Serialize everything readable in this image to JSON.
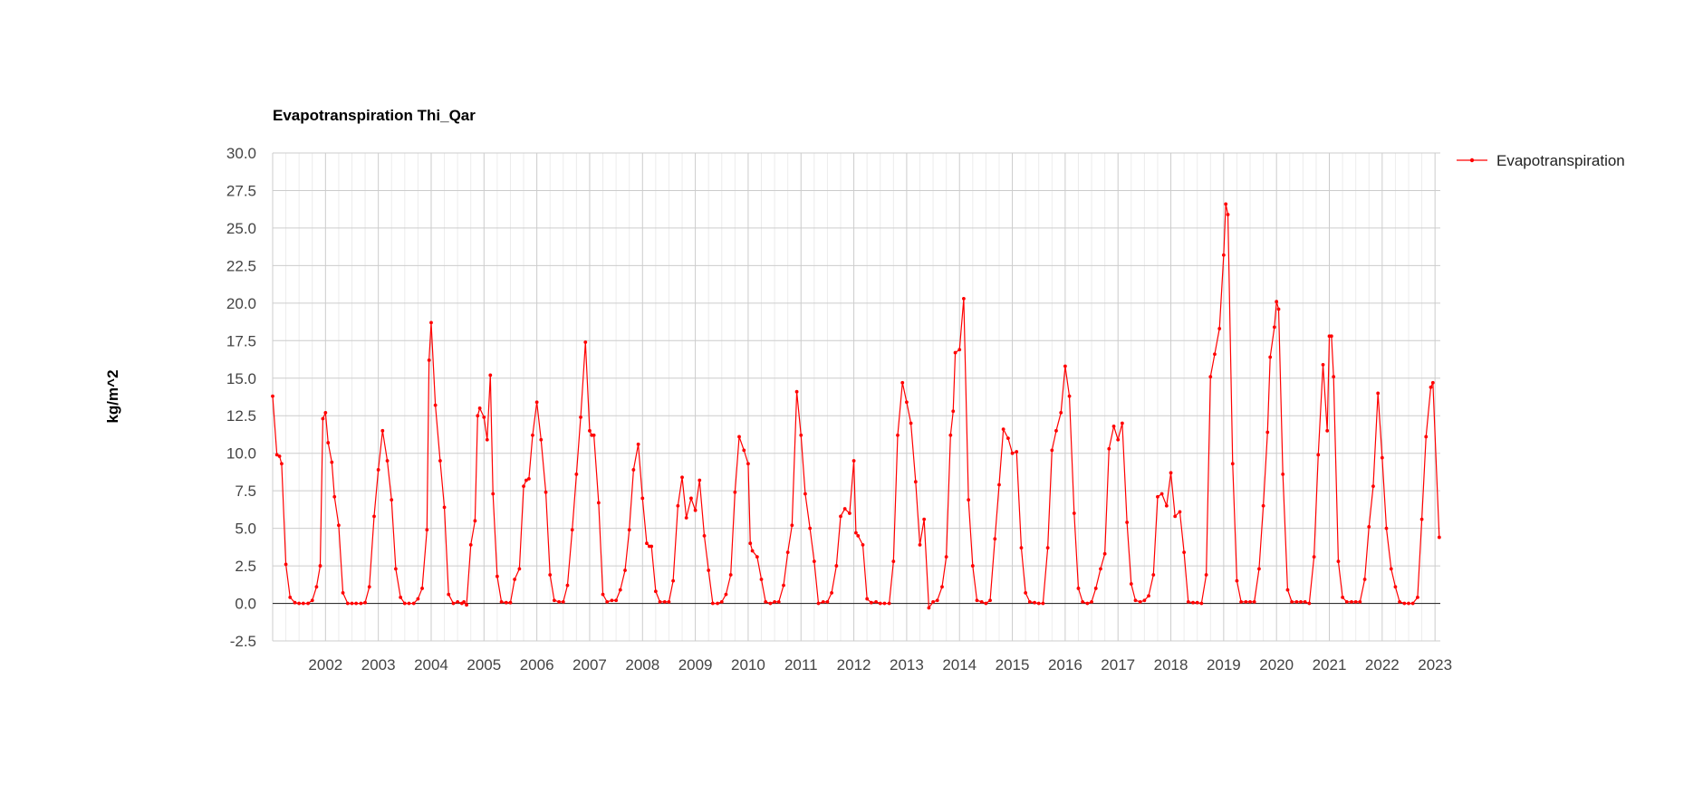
{
  "chart_data": {
    "type": "line",
    "title": "Evapotranspiration Thi_Qar",
    "ylabel": "kg/m^2",
    "xlabel": "",
    "ylim": [
      -2.5,
      30
    ],
    "yticks": [
      "30.0",
      "27.5",
      "25.0",
      "22.5",
      "20.0",
      "17.5",
      "15.0",
      "12.5",
      "10.0",
      "7.5",
      "5.0",
      "2.5",
      "0.0",
      "-2.5"
    ],
    "xticks": [
      "2002",
      "2003",
      "2004",
      "2005",
      "2006",
      "2007",
      "2008",
      "2009",
      "2010",
      "2011",
      "2012",
      "2013",
      "2014",
      "2015",
      "2016",
      "2017",
      "2018",
      "2019",
      "2020",
      "2021",
      "2022",
      "2023"
    ],
    "xlim": [
      2001.0,
      2023.1
    ],
    "grid": true,
    "legend_position": "right",
    "series": [
      {
        "name": "Evapotranspiration",
        "color": "#ff0000",
        "points": [
          [
            2001.0,
            13.8
          ],
          [
            2001.08,
            9.9
          ],
          [
            2001.13,
            9.8
          ],
          [
            2001.17,
            9.3
          ],
          [
            2001.25,
            2.6
          ],
          [
            2001.33,
            0.4
          ],
          [
            2001.42,
            0.05
          ],
          [
            2001.5,
            0.0
          ],
          [
            2001.58,
            0.0
          ],
          [
            2001.67,
            0.0
          ],
          [
            2001.75,
            0.2
          ],
          [
            2001.83,
            1.1
          ],
          [
            2001.9,
            2.5
          ],
          [
            2001.95,
            12.3
          ],
          [
            2002.0,
            12.7
          ],
          [
            2002.05,
            10.7
          ],
          [
            2002.12,
            9.4
          ],
          [
            2002.17,
            7.1
          ],
          [
            2002.25,
            5.2
          ],
          [
            2002.33,
            0.7
          ],
          [
            2002.42,
            0.0
          ],
          [
            2002.5,
            0.0
          ],
          [
            2002.58,
            0.0
          ],
          [
            2002.67,
            0.0
          ],
          [
            2002.75,
            0.05
          ],
          [
            2002.83,
            1.1
          ],
          [
            2002.92,
            5.8
          ],
          [
            2003.0,
            8.9
          ],
          [
            2003.08,
            11.5
          ],
          [
            2003.17,
            9.5
          ],
          [
            2003.25,
            6.9
          ],
          [
            2003.33,
            2.3
          ],
          [
            2003.42,
            0.4
          ],
          [
            2003.5,
            0.0
          ],
          [
            2003.58,
            0.0
          ],
          [
            2003.67,
            0.0
          ],
          [
            2003.75,
            0.3
          ],
          [
            2003.83,
            1.0
          ],
          [
            2003.92,
            4.9
          ],
          [
            2003.96,
            16.2
          ],
          [
            2004.0,
            18.7
          ],
          [
            2004.08,
            13.2
          ],
          [
            2004.17,
            9.5
          ],
          [
            2004.25,
            6.4
          ],
          [
            2004.33,
            0.6
          ],
          [
            2004.42,
            0.0
          ],
          [
            2004.5,
            0.1
          ],
          [
            2004.58,
            0.0
          ],
          [
            2004.62,
            0.1
          ],
          [
            2004.67,
            -0.1
          ],
          [
            2004.75,
            3.9
          ],
          [
            2004.83,
            5.5
          ],
          [
            2004.88,
            12.5
          ],
          [
            2004.92,
            13.0
          ],
          [
            2005.0,
            12.4
          ],
          [
            2005.06,
            10.9
          ],
          [
            2005.12,
            15.2
          ],
          [
            2005.17,
            7.3
          ],
          [
            2005.25,
            1.8
          ],
          [
            2005.33,
            0.1
          ],
          [
            2005.42,
            0.05
          ],
          [
            2005.5,
            0.05
          ],
          [
            2005.58,
            1.6
          ],
          [
            2005.67,
            2.3
          ],
          [
            2005.75,
            7.8
          ],
          [
            2005.8,
            8.2
          ],
          [
            2005.85,
            8.3
          ],
          [
            2005.92,
            11.2
          ],
          [
            2006.0,
            13.4
          ],
          [
            2006.08,
            10.9
          ],
          [
            2006.17,
            7.4
          ],
          [
            2006.25,
            1.9
          ],
          [
            2006.33,
            0.2
          ],
          [
            2006.42,
            0.1
          ],
          [
            2006.5,
            0.1
          ],
          [
            2006.58,
            1.2
          ],
          [
            2006.67,
            4.9
          ],
          [
            2006.75,
            8.6
          ],
          [
            2006.83,
            12.4
          ],
          [
            2006.92,
            17.4
          ],
          [
            2007.0,
            11.5
          ],
          [
            2007.04,
            11.2
          ],
          [
            2007.08,
            11.2
          ],
          [
            2007.17,
            6.7
          ],
          [
            2007.25,
            0.6
          ],
          [
            2007.33,
            0.1
          ],
          [
            2007.42,
            0.2
          ],
          [
            2007.5,
            0.2
          ],
          [
            2007.58,
            0.9
          ],
          [
            2007.67,
            2.2
          ],
          [
            2007.75,
            4.9
          ],
          [
            2007.83,
            8.9
          ],
          [
            2007.92,
            10.6
          ],
          [
            2008.0,
            7.0
          ],
          [
            2008.08,
            4.0
          ],
          [
            2008.13,
            3.8
          ],
          [
            2008.17,
            3.8
          ],
          [
            2008.25,
            0.8
          ],
          [
            2008.33,
            0.1
          ],
          [
            2008.42,
            0.1
          ],
          [
            2008.5,
            0.1
          ],
          [
            2008.58,
            1.5
          ],
          [
            2008.67,
            6.5
          ],
          [
            2008.75,
            8.4
          ],
          [
            2008.83,
            5.7
          ],
          [
            2008.92,
            7.0
          ],
          [
            2009.0,
            6.2
          ],
          [
            2009.08,
            8.2
          ],
          [
            2009.17,
            4.5
          ],
          [
            2009.25,
            2.2
          ],
          [
            2009.33,
            0.0
          ],
          [
            2009.42,
            0.0
          ],
          [
            2009.5,
            0.1
          ],
          [
            2009.58,
            0.6
          ],
          [
            2009.67,
            1.9
          ],
          [
            2009.75,
            7.4
          ],
          [
            2009.83,
            11.1
          ],
          [
            2009.92,
            10.2
          ],
          [
            2010.0,
            9.3
          ],
          [
            2010.04,
            4.0
          ],
          [
            2010.08,
            3.5
          ],
          [
            2010.17,
            3.1
          ],
          [
            2010.25,
            1.6
          ],
          [
            2010.33,
            0.1
          ],
          [
            2010.42,
            0.0
          ],
          [
            2010.5,
            0.1
          ],
          [
            2010.58,
            0.1
          ],
          [
            2010.67,
            1.2
          ],
          [
            2010.75,
            3.4
          ],
          [
            2010.83,
            5.2
          ],
          [
            2010.92,
            14.1
          ],
          [
            2011.0,
            11.2
          ],
          [
            2011.08,
            7.3
          ],
          [
            2011.17,
            5.0
          ],
          [
            2011.25,
            2.8
          ],
          [
            2011.33,
            0.0
          ],
          [
            2011.42,
            0.1
          ],
          [
            2011.5,
            0.1
          ],
          [
            2011.58,
            0.7
          ],
          [
            2011.67,
            2.5
          ],
          [
            2011.75,
            5.8
          ],
          [
            2011.83,
            6.3
          ],
          [
            2011.92,
            6.0
          ],
          [
            2012.0,
            9.5
          ],
          [
            2012.04,
            4.7
          ],
          [
            2012.08,
            4.5
          ],
          [
            2012.17,
            3.9
          ],
          [
            2012.25,
            0.3
          ],
          [
            2012.33,
            0.05
          ],
          [
            2012.42,
            0.1
          ],
          [
            2012.5,
            0.0
          ],
          [
            2012.58,
            0.0
          ],
          [
            2012.67,
            0.0
          ],
          [
            2012.75,
            2.8
          ],
          [
            2012.83,
            11.2
          ],
          [
            2012.92,
            14.7
          ],
          [
            2013.0,
            13.4
          ],
          [
            2013.08,
            12.0
          ],
          [
            2013.17,
            8.1
          ],
          [
            2013.25,
            3.9
          ],
          [
            2013.33,
            5.6
          ],
          [
            2013.42,
            -0.3
          ],
          [
            2013.5,
            0.1
          ],
          [
            2013.58,
            0.2
          ],
          [
            2013.67,
            1.1
          ],
          [
            2013.75,
            3.1
          ],
          [
            2013.83,
            11.2
          ],
          [
            2013.88,
            12.8
          ],
          [
            2013.92,
            16.7
          ],
          [
            2014.0,
            16.9
          ],
          [
            2014.08,
            20.3
          ],
          [
            2014.17,
            6.9
          ],
          [
            2014.25,
            2.5
          ],
          [
            2014.33,
            0.2
          ],
          [
            2014.42,
            0.1
          ],
          [
            2014.5,
            0.0
          ],
          [
            2014.58,
            0.2
          ],
          [
            2014.67,
            4.3
          ],
          [
            2014.75,
            7.9
          ],
          [
            2014.83,
            11.6
          ],
          [
            2014.92,
            11.0
          ],
          [
            2015.0,
            10.0
          ],
          [
            2015.08,
            10.1
          ],
          [
            2015.17,
            3.7
          ],
          [
            2015.25,
            0.7
          ],
          [
            2015.33,
            0.1
          ],
          [
            2015.42,
            0.05
          ],
          [
            2015.5,
            0.0
          ],
          [
            2015.58,
            0.0
          ],
          [
            2015.67,
            3.7
          ],
          [
            2015.75,
            10.2
          ],
          [
            2015.83,
            11.5
          ],
          [
            2015.92,
            12.7
          ],
          [
            2016.0,
            15.8
          ],
          [
            2016.08,
            13.8
          ],
          [
            2016.17,
            6.0
          ],
          [
            2016.25,
            1.0
          ],
          [
            2016.33,
            0.1
          ],
          [
            2016.42,
            0.0
          ],
          [
            2016.5,
            0.1
          ],
          [
            2016.58,
            1.0
          ],
          [
            2016.67,
            2.3
          ],
          [
            2016.75,
            3.3
          ],
          [
            2016.83,
            10.3
          ],
          [
            2016.92,
            11.8
          ],
          [
            2017.0,
            10.9
          ],
          [
            2017.08,
            12.0
          ],
          [
            2017.17,
            5.4
          ],
          [
            2017.25,
            1.3
          ],
          [
            2017.33,
            0.2
          ],
          [
            2017.42,
            0.1
          ],
          [
            2017.5,
            0.2
          ],
          [
            2017.58,
            0.5
          ],
          [
            2017.67,
            1.9
          ],
          [
            2017.75,
            7.1
          ],
          [
            2017.83,
            7.3
          ],
          [
            2017.92,
            6.5
          ],
          [
            2018.0,
            8.7
          ],
          [
            2018.08,
            5.8
          ],
          [
            2018.17,
            6.1
          ],
          [
            2018.25,
            3.4
          ],
          [
            2018.33,
            0.1
          ],
          [
            2018.42,
            0.05
          ],
          [
            2018.5,
            0.05
          ],
          [
            2018.58,
            0.0
          ],
          [
            2018.67,
            1.9
          ],
          [
            2018.75,
            15.1
          ],
          [
            2018.83,
            16.6
          ],
          [
            2018.92,
            18.3
          ],
          [
            2019.0,
            23.2
          ],
          [
            2019.04,
            26.6
          ],
          [
            2019.08,
            25.9
          ],
          [
            2019.17,
            9.3
          ],
          [
            2019.25,
            1.5
          ],
          [
            2019.33,
            0.1
          ],
          [
            2019.42,
            0.1
          ],
          [
            2019.5,
            0.1
          ],
          [
            2019.58,
            0.1
          ],
          [
            2019.67,
            2.3
          ],
          [
            2019.75,
            6.5
          ],
          [
            2019.83,
            11.4
          ],
          [
            2019.88,
            16.4
          ],
          [
            2019.96,
            18.4
          ],
          [
            2020.0,
            20.1
          ],
          [
            2020.04,
            19.6
          ],
          [
            2020.12,
            8.6
          ],
          [
            2020.21,
            0.9
          ],
          [
            2020.29,
            0.1
          ],
          [
            2020.38,
            0.1
          ],
          [
            2020.46,
            0.1
          ],
          [
            2020.54,
            0.1
          ],
          [
            2020.62,
            0.0
          ],
          [
            2020.71,
            3.1
          ],
          [
            2020.79,
            9.9
          ],
          [
            2020.88,
            15.9
          ],
          [
            2020.96,
            11.5
          ],
          [
            2021.0,
            17.8
          ],
          [
            2021.04,
            17.8
          ],
          [
            2021.08,
            15.1
          ],
          [
            2021.17,
            2.8
          ],
          [
            2021.25,
            0.4
          ],
          [
            2021.33,
            0.1
          ],
          [
            2021.42,
            0.1
          ],
          [
            2021.5,
            0.1
          ],
          [
            2021.58,
            0.1
          ],
          [
            2021.67,
            1.6
          ],
          [
            2021.75,
            5.1
          ],
          [
            2021.83,
            7.8
          ],
          [
            2021.92,
            14.0
          ],
          [
            2022.0,
            9.7
          ],
          [
            2022.08,
            5.0
          ],
          [
            2022.17,
            2.3
          ],
          [
            2022.25,
            1.1
          ],
          [
            2022.33,
            0.1
          ],
          [
            2022.42,
            0.0
          ],
          [
            2022.5,
            0.0
          ],
          [
            2022.58,
            0.0
          ],
          [
            2022.67,
            0.4
          ],
          [
            2022.75,
            5.6
          ],
          [
            2022.83,
            11.1
          ],
          [
            2022.92,
            14.4
          ],
          [
            2022.96,
            14.7
          ],
          [
            2023.08,
            4.4
          ]
        ]
      }
    ]
  }
}
